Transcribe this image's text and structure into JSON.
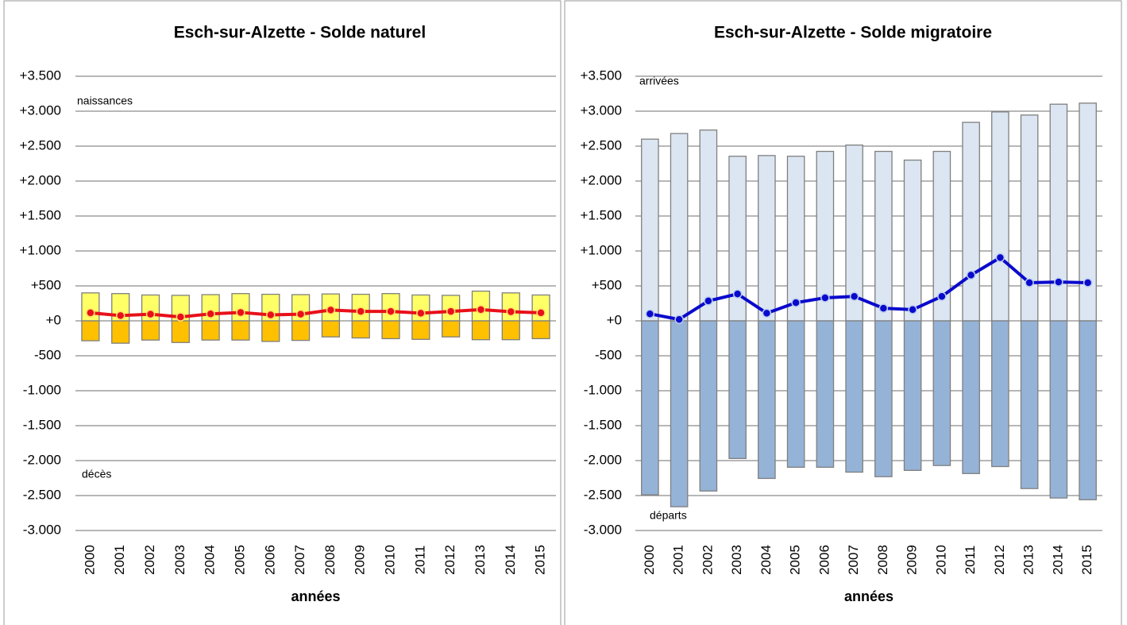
{
  "chart_data": [
    {
      "type": "bar",
      "title": "Esch-sur-Alzette - Solde naturel",
      "xlabel": "années",
      "annotations": [
        "naissances",
        "décès"
      ],
      "categories": [
        "2000",
        "2001",
        "2002",
        "2003",
        "2004",
        "2005",
        "2006",
        "2007",
        "2008",
        "2009",
        "2010",
        "2011",
        "2012",
        "2013",
        "2014",
        "2015"
      ],
      "series": [
        {
          "name": "naissances",
          "color": "#ffff66",
          "values": [
            400,
            390,
            370,
            365,
            375,
            390,
            380,
            375,
            385,
            380,
            390,
            370,
            365,
            425,
            400,
            370
          ]
        },
        {
          "name": "décès",
          "color": "#ffc000",
          "values": [
            -285,
            -320,
            -275,
            -310,
            -275,
            -275,
            -295,
            -280,
            -230,
            -245,
            -255,
            -265,
            -230,
            -270,
            -270,
            -255
          ]
        },
        {
          "type": "line",
          "color": "#e8101a",
          "values": [
            115,
            75,
            95,
            55,
            100,
            120,
            85,
            95,
            155,
            135,
            135,
            110,
            135,
            160,
            130,
            115
          ]
        }
      ],
      "ylim": [
        -3000,
        3500
      ],
      "yticks": [
        {
          "value": -3000,
          "label": "-3.000"
        },
        {
          "value": -2500,
          "label": "-2.500"
        },
        {
          "value": -2000,
          "label": "-2.000"
        },
        {
          "value": -1500,
          "label": "-1.500"
        },
        {
          "value": -1000,
          "label": "-1.000"
        },
        {
          "value": -500,
          "label": "-500"
        },
        {
          "value": 0,
          "label": "+0"
        },
        {
          "value": 500,
          "label": "+500"
        },
        {
          "value": 1000,
          "label": "+1.000"
        },
        {
          "value": 1500,
          "label": "+1.500"
        },
        {
          "value": 2000,
          "label": "+2.000"
        },
        {
          "value": 2500,
          "label": "+2.500"
        },
        {
          "value": 3000,
          "label": "+3.000"
        },
        {
          "value": 3500,
          "label": "+3.500"
        }
      ],
      "grid": true
    },
    {
      "type": "bar",
      "title": "Esch-sur-Alzette - Solde migratoire",
      "xlabel": "années",
      "annotations": [
        "arrivées",
        "départs"
      ],
      "categories": [
        "2000",
        "2001",
        "2002",
        "2003",
        "2004",
        "2005",
        "2006",
        "2007",
        "2008",
        "2009",
        "2010",
        "2011",
        "2012",
        "2013",
        "2014",
        "2015"
      ],
      "series": [
        {
          "name": "arrivées",
          "color": "#dce6f2",
          "values": [
            2600,
            2680,
            2730,
            2355,
            2365,
            2355,
            2425,
            2515,
            2425,
            2300,
            2425,
            2840,
            2990,
            2945,
            3100,
            3115
          ]
        },
        {
          "name": "départs",
          "color": "#95b3d7",
          "values": [
            -2490,
            -2660,
            -2435,
            -1970,
            -2255,
            -2095,
            -2095,
            -2165,
            -2230,
            -2140,
            -2070,
            -2185,
            -2085,
            -2400,
            -2535,
            -2560
          ]
        },
        {
          "type": "line",
          "color": "#0a0acc",
          "values": [
            100,
            20,
            285,
            385,
            110,
            260,
            330,
            350,
            180,
            160,
            350,
            655,
            905,
            545,
            555,
            545
          ]
        }
      ],
      "ylim": [
        -3000,
        3500
      ],
      "yticks": [
        {
          "value": -3000,
          "label": "-3.000"
        },
        {
          "value": -2500,
          "label": "-2.500"
        },
        {
          "value": -2000,
          "label": "-2.000"
        },
        {
          "value": -1500,
          "label": "-1.500"
        },
        {
          "value": -1000,
          "label": "-1.000"
        },
        {
          "value": -500,
          "label": "-500"
        },
        {
          "value": 0,
          "label": "+0"
        },
        {
          "value": 500,
          "label": "+500"
        },
        {
          "value": 1000,
          "label": "+1.000"
        },
        {
          "value": 1500,
          "label": "+1.500"
        },
        {
          "value": 2000,
          "label": "+2.000"
        },
        {
          "value": 2500,
          "label": "+2.500"
        },
        {
          "value": 3000,
          "label": "+3.000"
        },
        {
          "value": 3500,
          "label": "+3.500"
        }
      ],
      "grid": true
    }
  ]
}
